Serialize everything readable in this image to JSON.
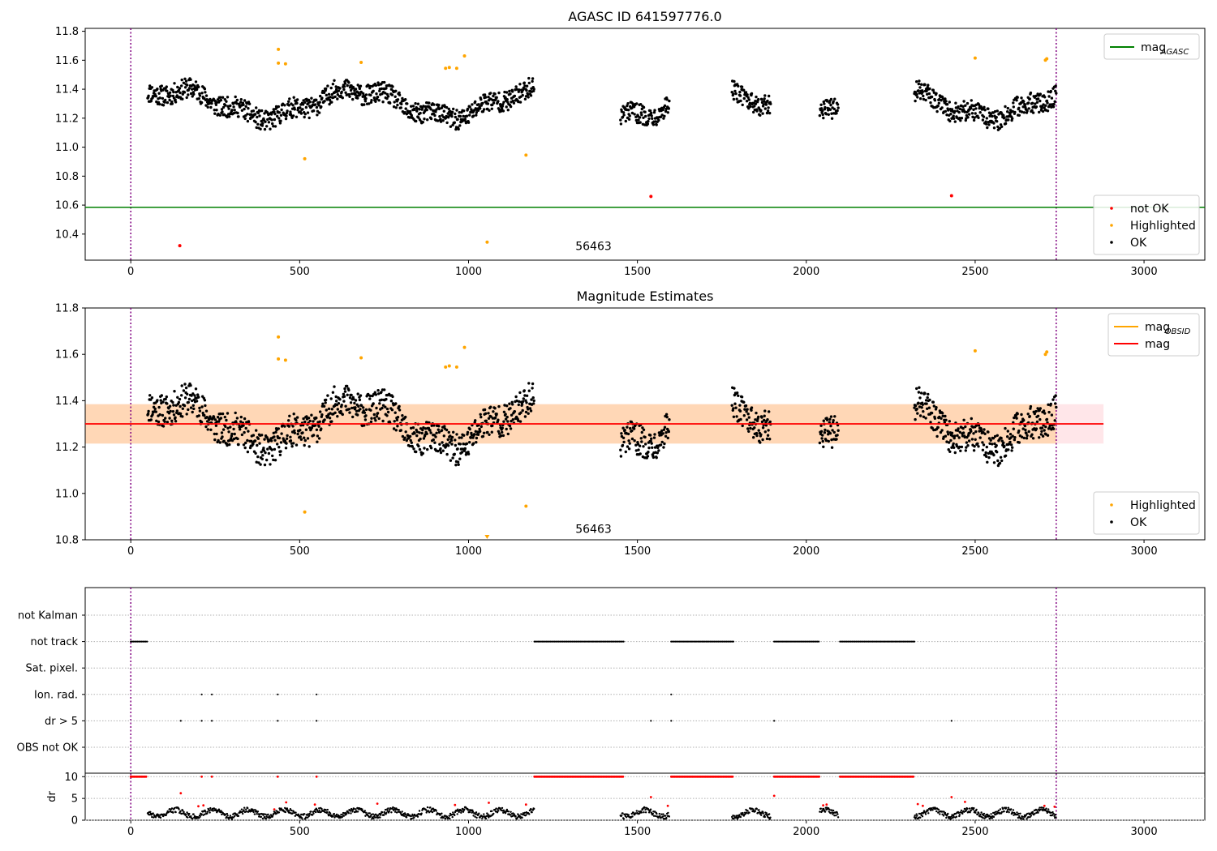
{
  "chart_data": [
    {
      "type": "scatter",
      "title": "AGASC ID 641597776.0",
      "xlim": [
        -135,
        3180
      ],
      "ylim": [
        10.22,
        11.82
      ],
      "xticks": [
        0,
        500,
        1000,
        1500,
        2000,
        2500,
        3000
      ],
      "yticks": [
        10.4,
        10.6,
        10.8,
        11.0,
        11.2,
        11.4,
        11.6,
        11.8
      ],
      "vlines": [
        0,
        2740
      ],
      "annotation": {
        "text": "56463",
        "x": 1370,
        "y": 10.29
      },
      "hlines": [
        {
          "name": "mag_AGASC",
          "y": 10.585,
          "color": "#008000"
        }
      ],
      "series": [
        {
          "name": "not OK",
          "color": "#ff0000",
          "points": [
            [
              145,
              10.32
            ],
            [
              1540,
              10.66
            ],
            [
              2430,
              10.665
            ]
          ]
        },
        {
          "name": "Highlighted",
          "color": "#ffa500",
          "points": [
            [
              437,
              11.675
            ],
            [
              437,
              11.58
            ],
            [
              458,
              11.575
            ],
            [
              515,
              10.92
            ],
            [
              682,
              11.585
            ],
            [
              932,
              11.545
            ],
            [
              943,
              11.55
            ],
            [
              965,
              11.545
            ],
            [
              988,
              11.63
            ],
            [
              1055,
              10.345
            ],
            [
              1170,
              10.945
            ],
            [
              2500,
              11.615
            ],
            [
              2708,
              11.6
            ],
            [
              2712,
              11.61
            ]
          ]
        },
        {
          "name": "OK",
          "color": "#000000",
          "segments": [
            [
              50,
              1195
            ],
            [
              1450,
              1595
            ],
            [
              1780,
              1895
            ],
            [
              2040,
              2095
            ],
            [
              2320,
              2740
            ]
          ]
        }
      ],
      "legends": [
        {
          "position": "top-right",
          "items": [
            {
              "label": "mag",
              "sub": "AGASC",
              "kind": "line",
              "color": "#008000"
            }
          ]
        },
        {
          "position": "bottom-right",
          "items": [
            {
              "label": "not OK",
              "kind": "dot",
              "color": "#ff0000"
            },
            {
              "label": "Highlighted",
              "kind": "dot",
              "color": "#ffa500"
            },
            {
              "label": "OK",
              "kind": "dot",
              "color": "#000000"
            }
          ]
        }
      ]
    },
    {
      "type": "scatter",
      "title": "Magnitude Estimates",
      "xlim": [
        -135,
        3180
      ],
      "ylim": [
        10.8,
        11.8
      ],
      "xticks": [
        0,
        500,
        1000,
        1500,
        2000,
        2500,
        3000
      ],
      "yticks": [
        10.8,
        11.0,
        11.2,
        11.4,
        11.6,
        11.8
      ],
      "vlines": [
        0,
        2740
      ],
      "annotation": {
        "text": "56463",
        "x": 1370,
        "y": 10.83
      },
      "band_full": {
        "x": [
          -135,
          2880
        ],
        "y": [
          11.215,
          11.385
        ],
        "color": "#ffb6c1"
      },
      "band_obs": {
        "x": [
          -135,
          2740
        ],
        "y": [
          11.215,
          11.385
        ],
        "color": "#ffa500"
      },
      "mag_line": {
        "y": 11.3,
        "x": [
          -135,
          2880
        ],
        "color": "#ff0000"
      },
      "series": [
        {
          "name": "Highlighted",
          "color": "#ffa500",
          "points": [
            [
              437,
              11.675
            ],
            [
              437,
              11.58
            ],
            [
              458,
              11.575
            ],
            [
              515,
              10.92
            ],
            [
              682,
              11.585
            ],
            [
              932,
              11.545
            ],
            [
              943,
              11.55
            ],
            [
              965,
              11.545
            ],
            [
              988,
              11.63
            ],
            [
              1170,
              10.945
            ],
            [
              2500,
              11.615
            ],
            [
              2708,
              11.6
            ],
            [
              2712,
              11.61
            ]
          ]
        },
        {
          "name": "OK",
          "color": "#000000",
          "segments": [
            [
              50,
              1195
            ],
            [
              1450,
              1595
            ],
            [
              1780,
              1895
            ],
            [
              2040,
              2095
            ],
            [
              2320,
              2740
            ]
          ]
        }
      ],
      "legends": [
        {
          "position": "top-right",
          "items": [
            {
              "label": "mag",
              "sub": "OBSID",
              "kind": "line",
              "color": "#ffa500"
            },
            {
              "label": "mag",
              "sub": "",
              "kind": "line",
              "color": "#ff0000"
            }
          ]
        },
        {
          "position": "bottom-right",
          "items": [
            {
              "label": "Highlighted",
              "kind": "dot",
              "color": "#ffa500"
            },
            {
              "label": "OK",
              "kind": "dot",
              "color": "#000000"
            }
          ]
        }
      ]
    },
    {
      "type": "scatter",
      "title": "",
      "xlim": [
        -135,
        3180
      ],
      "xticks": [
        0,
        500,
        1000,
        1500,
        2000,
        2500,
        3000
      ],
      "vlines": [
        0,
        2740
      ],
      "flag_labels": [
        "not Kalman",
        "not track",
        "Sat. pixel.",
        "Ion. rad.",
        "dr > 5",
        "OBS not OK"
      ],
      "flags": {
        "not Kalman": [],
        "not track": [
          [
            0,
            48
          ],
          [
            1195,
            1460
          ],
          [
            1600,
            1785
          ],
          [
            1905,
            2040
          ],
          [
            2100,
            2320
          ]
        ],
        "Sat. pixel.": [],
        "Ion. rad.": [
          210,
          240,
          435,
          550,
          1600
        ],
        "dr > 5": [
          148,
          210,
          240,
          435,
          550,
          1540,
          1600,
          1905,
          2430
        ],
        "OBS not OK": []
      },
      "dr": {
        "ylabel": "dr",
        "ylim": [
          0,
          10.8
        ],
        "yticks": [
          0,
          5,
          10
        ],
        "saturated_value": 10,
        "saturated_ranges": [
          [
            0,
            48
          ],
          [
            1195,
            1460
          ],
          [
            1600,
            1785
          ],
          [
            1905,
            2040
          ],
          [
            2100,
            2320
          ]
        ],
        "saturated_points": [
          210,
          240,
          435,
          550
        ],
        "segments": [
          [
            50,
            1195
          ],
          [
            1450,
            1595
          ],
          [
            1780,
            1895
          ],
          [
            2040,
            2095
          ],
          [
            2320,
            2740
          ]
        ],
        "red_points": [
          [
            148,
            6.2
          ],
          [
            200,
            3.2
          ],
          [
            215,
            3.4
          ],
          [
            425,
            2.5
          ],
          [
            460,
            4.1
          ],
          [
            545,
            3.6
          ],
          [
            730,
            3.8
          ],
          [
            960,
            3.5
          ],
          [
            1060,
            4.0
          ],
          [
            1170,
            3.6
          ],
          [
            1540,
            5.3
          ],
          [
            1590,
            3.3
          ],
          [
            1905,
            5.6
          ],
          [
            2050,
            3.4
          ],
          [
            2060,
            3.6
          ],
          [
            2330,
            3.7
          ],
          [
            2345,
            3.3
          ],
          [
            2430,
            5.3
          ],
          [
            2470,
            4.2
          ],
          [
            2705,
            3.3
          ],
          [
            2735,
            3.1
          ]
        ]
      }
    }
  ]
}
